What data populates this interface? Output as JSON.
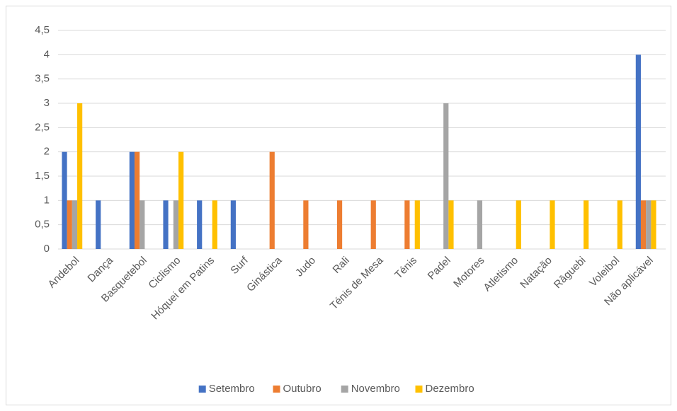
{
  "chart_data": {
    "type": "bar",
    "categories": [
      "Andebol",
      "Dança",
      "Basquetebol",
      "Ciclismo",
      "Hóquei em Patins",
      "Surf",
      "Ginástica",
      "Judo",
      "Rali",
      "Ténis de Mesa",
      "Ténis",
      "Padel",
      "Motores",
      "Atletismo",
      "Natação",
      "Râguebi",
      "Voleibol",
      "Não aplicável"
    ],
    "series": [
      {
        "name": "Setembro",
        "color": "#4472c4",
        "values": [
          2,
          1,
          2,
          1,
          1,
          1,
          0,
          0,
          0,
          0,
          0,
          0,
          0,
          0,
          0,
          0,
          0,
          4
        ]
      },
      {
        "name": "Outubro",
        "color": "#ed7d31",
        "values": [
          1,
          0,
          2,
          0,
          0,
          0,
          2,
          1,
          1,
          1,
          1,
          0,
          0,
          0,
          0,
          0,
          0,
          1
        ]
      },
      {
        "name": "Novembro",
        "color": "#a5a5a5",
        "values": [
          1,
          0,
          1,
          1,
          0,
          0,
          0,
          0,
          0,
          0,
          0,
          3,
          1,
          0,
          0,
          0,
          0,
          1
        ]
      },
      {
        "name": "Dezembro",
        "color": "#ffc000",
        "values": [
          3,
          0,
          0,
          2,
          1,
          0,
          0,
          0,
          0,
          0,
          1,
          1,
          0,
          1,
          1,
          1,
          1,
          1
        ]
      }
    ],
    "ylim": [
      0,
      4.5
    ],
    "yticks": [
      0,
      {
        "value": 0.5,
        "label": "0,5"
      },
      1,
      {
        "value": 1.5,
        "label": "1,5"
      },
      2,
      {
        "value": 2.5,
        "label": "2,5"
      },
      3,
      {
        "value": 3.5,
        "label": "3,5"
      },
      4,
      {
        "value": 4.5,
        "label": "4,5"
      }
    ],
    "grid": true,
    "legend": "bottom"
  }
}
